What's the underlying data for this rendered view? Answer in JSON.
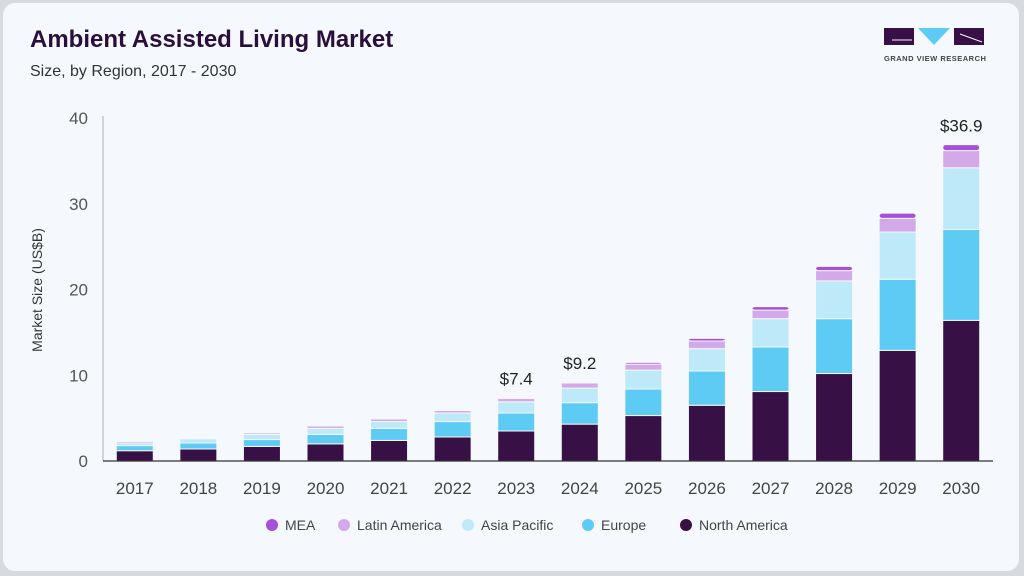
{
  "header": {
    "title": "Ambient Assisted Living Market",
    "subtitle": "Size, by Region, 2017 - 2030"
  },
  "logo": {
    "text": "GRAND VIEW RESEARCH"
  },
  "chart_data": {
    "type": "bar",
    "stacked": true,
    "title": "Ambient Assisted Living Market",
    "subtitle": "Size, by Region, 2017 - 2030",
    "ylabel": "Market Size (US$B)",
    "xlabel": "",
    "ylim": [
      0,
      40
    ],
    "yticks": [
      0,
      10,
      20,
      30,
      40
    ],
    "grid": false,
    "legend_position": "bottom",
    "categories": [
      "2017",
      "2018",
      "2019",
      "2020",
      "2021",
      "2022",
      "2023",
      "2024",
      "2025",
      "2026",
      "2027",
      "2028",
      "2029",
      "2030"
    ],
    "series": [
      {
        "name": "North America",
        "color": "#371046",
        "values": [
          1.2,
          1.4,
          1.7,
          2.0,
          2.4,
          2.8,
          3.5,
          4.3,
          5.3,
          6.5,
          8.1,
          10.2,
          12.9,
          16.4
        ]
      },
      {
        "name": "Europe",
        "color": "#5ecbf5",
        "values": [
          0.6,
          0.7,
          0.8,
          1.1,
          1.4,
          1.8,
          2.1,
          2.5,
          3.1,
          4.0,
          5.2,
          6.4,
          8.3,
          10.6
        ]
      },
      {
        "name": "Asia Pacific",
        "color": "#bde9f9",
        "values": [
          0.3,
          0.5,
          0.6,
          0.7,
          0.8,
          1.0,
          1.3,
          1.7,
          2.2,
          2.6,
          3.3,
          4.4,
          5.5,
          7.2
        ]
      },
      {
        "name": "Latin America",
        "color": "#d4a9e9",
        "values": [
          0.2,
          0.1,
          0.2,
          0.3,
          0.3,
          0.3,
          0.4,
          0.6,
          0.7,
          0.9,
          1.0,
          1.2,
          1.6,
          2.0
        ]
      },
      {
        "name": "MEA",
        "color": "#a550d9",
        "values": [
          0.05,
          0.05,
          0.05,
          0.05,
          0.05,
          0.05,
          0.1,
          0.1,
          0.2,
          0.3,
          0.4,
          0.5,
          0.6,
          0.7
        ]
      }
    ],
    "data_labels": [
      {
        "category": "2023",
        "text": "$7.4"
      },
      {
        "category": "2024",
        "text": "$9.2"
      },
      {
        "category": "2030",
        "text": "$36.9"
      }
    ],
    "legend_order": [
      "MEA",
      "Latin America",
      "Asia Pacific",
      "Europe",
      "North America"
    ]
  }
}
